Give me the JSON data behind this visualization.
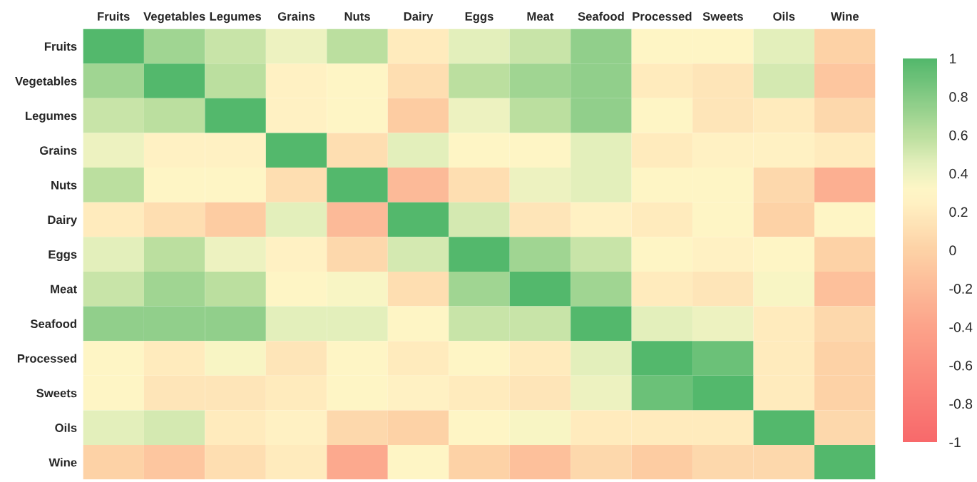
{
  "chart_data": {
    "type": "heatmap",
    "categories": [
      "Fruits",
      "Vegetables",
      "Legumes",
      "Grains",
      "Nuts",
      "Dairy",
      "Eggs",
      "Meat",
      "Seafood",
      "Processed",
      "Sweets",
      "Oils",
      "Wine"
    ],
    "y_categories": [
      "Fruits",
      "Vegetables",
      "Legumes",
      "Grains",
      "Nuts",
      "Dairy",
      "Eggs",
      "Meat",
      "Seafood",
      "Processed",
      "Sweets",
      "Oils",
      "Wine"
    ],
    "cells": [
      [
        1,
        0.7,
        0.55,
        0.4,
        0.6,
        0.2,
        0.45,
        0.55,
        0.75,
        0.3,
        0.3,
        0.45,
        0.0
      ],
      [
        0.7,
        1,
        0.6,
        0.25,
        0.3,
        0.1,
        0.6,
        0.7,
        0.75,
        0.2,
        0.15,
        0.5,
        -0.1
      ],
      [
        0.55,
        0.6,
        1,
        0.25,
        0.3,
        -0.05,
        0.4,
        0.6,
        0.75,
        0.3,
        0.15,
        0.2,
        0.05
      ],
      [
        0.4,
        0.25,
        0.25,
        1,
        0.1,
        0.45,
        0.3,
        0.3,
        0.45,
        0.2,
        0.25,
        0.25,
        0.2
      ],
      [
        0.6,
        0.3,
        0.3,
        0.1,
        1,
        -0.2,
        0.1,
        0.4,
        0.45,
        0.3,
        0.3,
        0.05,
        -0.3
      ],
      [
        0.2,
        0.1,
        -0.05,
        0.45,
        -0.2,
        1,
        0.5,
        0.15,
        0.25,
        0.2,
        0.3,
        0.0,
        0.3
      ],
      [
        0.45,
        0.6,
        0.4,
        0.25,
        0.05,
        0.5,
        1,
        0.7,
        0.55,
        0.3,
        0.25,
        0.3,
        0.0
      ],
      [
        0.55,
        0.7,
        0.6,
        0.3,
        0.35,
        0.1,
        0.7,
        1,
        0.7,
        0.2,
        0.15,
        0.35,
        -0.15
      ],
      [
        0.75,
        0.75,
        0.75,
        0.45,
        0.45,
        0.3,
        0.55,
        0.55,
        1,
        0.45,
        0.4,
        0.2,
        0.05
      ],
      [
        0.3,
        0.2,
        0.35,
        0.15,
        0.3,
        0.2,
        0.3,
        0.2,
        0.45,
        1,
        0.9,
        0.2,
        0.0
      ],
      [
        0.3,
        0.15,
        0.15,
        0.2,
        0.3,
        0.25,
        0.2,
        0.15,
        0.4,
        0.9,
        1,
        0.2,
        0.0
      ],
      [
        0.45,
        0.5,
        0.2,
        0.25,
        0.05,
        0.0,
        0.3,
        0.35,
        0.2,
        0.2,
        0.2,
        1,
        0.05
      ],
      [
        0.0,
        -0.1,
        0.1,
        0.2,
        -0.35,
        0.3,
        0.0,
        -0.15,
        0.05,
        -0.05,
        0.05,
        0.05,
        1
      ]
    ],
    "clim": [
      -1,
      1
    ],
    "cticks": [
      1,
      0.8,
      0.6,
      0.4,
      0.2,
      0,
      -0.2,
      -0.4,
      -0.6,
      -0.8,
      -1
    ]
  }
}
